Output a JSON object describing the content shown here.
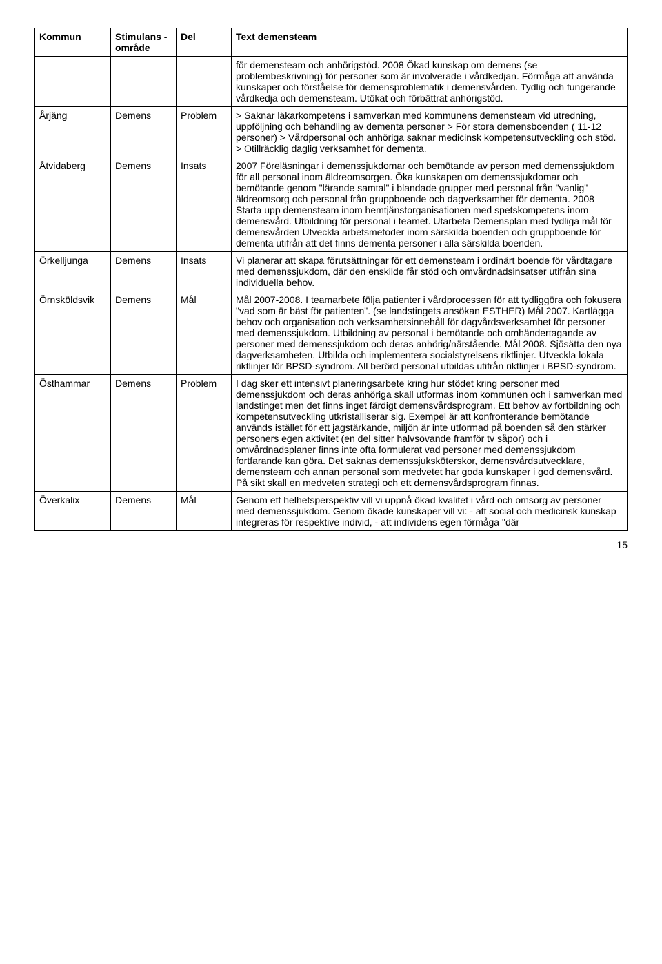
{
  "headers": {
    "kommun": "Kommun",
    "stimulans": "Stimulans\n-område",
    "del": "Del",
    "text": "Text  demensteam"
  },
  "rows": [
    {
      "kommun": "",
      "stimulans": "",
      "del": "",
      "text": "för demensteam och anhörigstöd. 2008 Ökad kunskap om demens (se problembeskrivning) för personer  som är involverade i vårdkedjan. Förmåga att använda kunskaper och förståelse för demensproblematik i demensvården. Tydlig och fungerande vårdkedja och demensteam. Utökat och förbättrat anhörigstöd."
    },
    {
      "kommun": "Årjäng",
      "stimulans": "Demens",
      "del": "Problem",
      "text": "> Saknar läkarkompetens i samverkan med kommunens demensteam vid utredning, uppföljning och behandling av dementa personer  > För stora demensboenden  ( 11-12 personer)  > Vårdpersonal och anhöriga saknar medicinsk kompetensutveckling och stöd.  > Otillräcklig daglig verksamhet för dementa."
    },
    {
      "kommun": "Åtvidaberg",
      "stimulans": "Demens",
      "del": "Insats",
      "text": "2007  Föreläsningar i demenssjukdomar och bemötande av person med demenssjukdom för all personal inom äldreomsorgen. Öka kunskapen om demenssjukdomar och bemötande genom \"lärande samtal\" i blandade grupper med personal från \"vanlig\" äldreomsorg och personal från gruppboende och dagverksamhet för dementa. 2008  Starta upp demensteam inom hemtjänstorganisationen med spetskompetens inom demensvård. Utbildning för personal i teamet. Utarbeta Demensplan med tydliga mål för demensvården Utveckla arbetsmetoder inom särskilda boenden och gruppboende för dementa utifrån att det finns dementa personer i alla särskilda boenden."
    },
    {
      "kommun": "Örkelljunga",
      "stimulans": "Demens",
      "del": "Insats",
      "text": "Vi planerar att skapa förutsättningar för ett demensteam i ordinärt boende för vårdtagare med demenssjukdom, där den enskilde får stöd och omvårdnadsinsatser utifrån sina individuella behov."
    },
    {
      "kommun": "Örnsköldsvik",
      "stimulans": "Demens",
      "del": "Mål",
      "text": "Mål 2007-2008. I teamarbete följa patienter i vårdprocessen för att tydliggöra och fokusera \"vad som är bäst för patienten\". (se landstingets ansökan ESTHER) Mål 2007. Kartlägga behov och organisation och verksamhetsinnehåll för dagvårdsverksamhet för personer med demenssjukdom. Utbildning av personal i bemötande och omhändertagande av personer med demenssjukdom och deras anhörig/närstående. Mål 2008. Sjösätta den nya dagverksamheten. Utbilda och implementera socialstyrelsens riktlinjer.  Utveckla lokala riktlinjer för BPSD-syndrom. All berörd personal utbildas utifrån riktlinjer i BPSD-syndrom."
    },
    {
      "kommun": "Östhammar",
      "stimulans": "Demens",
      "del": "Problem",
      "text": "I dag sker ett intensivt planeringsarbete kring hur stödet kring personer med demenssjukdom och deras anhöriga skall utformas inom kommunen och i samverkan med landstinget men det finns inget färdigt demensvårdsprogram. Ett behov av fortbildning och kompetensutveckling utkristalliserar sig. Exempel är att  konfronterande bemötande används istället för ett jagstärkande, miljön är inte utformad på boenden så den stärker personers egen aktivitet (en del sitter halvsovande framför tv såpor) och i omvårdnadsplaner finns inte ofta formulerat vad personer med demenssjukdom fortfarande kan göra. Det saknas demenssjuksköterskor, demensvårdsutvecklare, demensteam och annan personal som medvetet har goda kunskaper i god demensvård. På sikt skall en medveten strategi och ett demensvårdsprogram finnas."
    },
    {
      "kommun": "Överkalix",
      "stimulans": "Demens",
      "del": "Mål",
      "text": "Genom ett helhetsperspektiv vill vi uppnå ökad kvalitet i vård och omsorg av personer med demenssjukdom. Genom ökade kunskaper vill vi: - att social och medicinsk kunskap integreras för respektive individ, - att individens egen förmåga \"där"
    }
  ],
  "page_number": "15"
}
